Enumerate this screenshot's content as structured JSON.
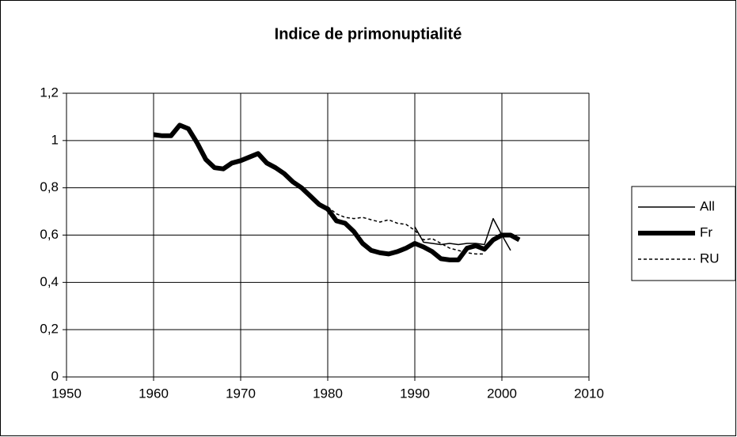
{
  "chart_data": {
    "type": "line",
    "title": "Indice de primonuptialité",
    "x": [
      1960,
      1961,
      1962,
      1963,
      1964,
      1965,
      1966,
      1967,
      1968,
      1969,
      1970,
      1971,
      1972,
      1973,
      1974,
      1975,
      1976,
      1977,
      1978,
      1979,
      1980,
      1981,
      1982,
      1983,
      1984,
      1985,
      1986,
      1987,
      1988,
      1989,
      1990,
      1991,
      1992,
      1993,
      1994,
      1995,
      1996,
      1997,
      1998,
      1999,
      2000,
      2001,
      2002
    ],
    "series": [
      {
        "name": "All",
        "color": "#000000",
        "style": "thin",
        "values": [
          null,
          null,
          null,
          null,
          null,
          null,
          null,
          null,
          null,
          null,
          null,
          null,
          null,
          null,
          null,
          null,
          null,
          null,
          null,
          null,
          null,
          null,
          null,
          null,
          null,
          null,
          null,
          null,
          null,
          null,
          0.635,
          0.57,
          0.565,
          0.56,
          0.565,
          0.56,
          0.565,
          0.565,
          0.56,
          0.67,
          0.6,
          0.535,
          null
        ]
      },
      {
        "name": "Fr",
        "color": "#000000",
        "style": "thick",
        "values": [
          1.025,
          1.02,
          1.02,
          1.065,
          1.05,
          0.99,
          0.92,
          0.885,
          0.88,
          0.905,
          0.915,
          0.93,
          0.945,
          0.905,
          0.885,
          0.86,
          0.825,
          0.8,
          0.765,
          0.73,
          0.71,
          0.66,
          0.65,
          0.615,
          0.565,
          0.535,
          0.525,
          0.52,
          0.53,
          0.545,
          0.565,
          0.55,
          0.53,
          0.5,
          0.495,
          0.495,
          0.545,
          0.555,
          0.54,
          0.58,
          0.6,
          0.6,
          0.58
        ]
      },
      {
        "name": "RU",
        "color": "#000000",
        "style": "dashed",
        "values": [
          null,
          null,
          null,
          null,
          null,
          null,
          null,
          null,
          null,
          null,
          null,
          null,
          null,
          null,
          null,
          null,
          null,
          null,
          null,
          null,
          0.72,
          0.69,
          0.675,
          0.67,
          0.675,
          0.665,
          0.655,
          0.665,
          0.65,
          0.645,
          0.62,
          0.58,
          0.585,
          0.565,
          0.545,
          0.535,
          0.525,
          0.52,
          0.52,
          null,
          null,
          null,
          null
        ]
      }
    ],
    "xlim": [
      1950,
      2010
    ],
    "xticks": [
      1950,
      1960,
      1970,
      1980,
      1990,
      2000,
      2010
    ],
    "ylim": [
      0,
      1.2
    ],
    "yticks": [
      0,
      {
        "value": 0.2,
        "label": "0,2"
      },
      {
        "value": 0.4,
        "label": "0,4"
      },
      {
        "value": 0.6,
        "label": "0,6"
      },
      {
        "value": 0.8,
        "label": "0,8"
      },
      1,
      {
        "value": 1.2,
        "label": "1,2"
      }
    ],
    "grid": true,
    "legend": "right"
  }
}
